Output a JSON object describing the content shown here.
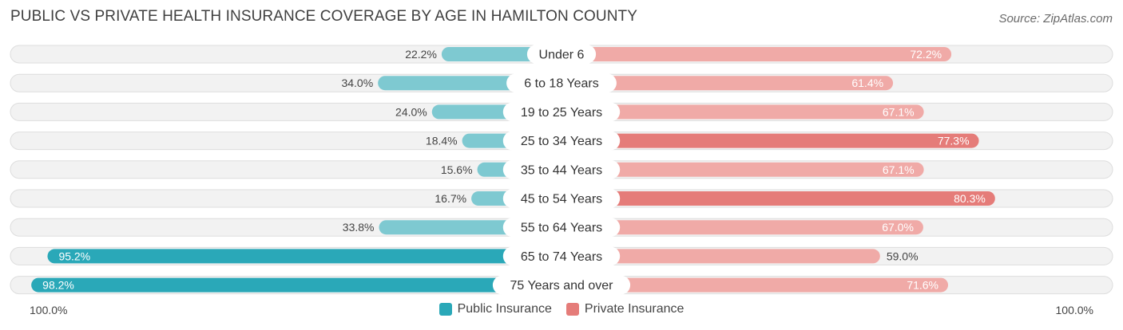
{
  "title": "PUBLIC VS PRIVATE HEALTH INSURANCE COVERAGE BY AGE IN HAMILTON COUNTY",
  "source": "Source: ZipAtlas.com",
  "axis": {
    "left_label": "100.0%",
    "right_label": "100.0%"
  },
  "legend": {
    "public_label": "Public Insurance",
    "private_label": "Private Insurance"
  },
  "colors": {
    "public_strong": "#2aa8b8",
    "public_light": "#7ec9d1",
    "private_strong": "#e57c79",
    "private_light": "#f0aaa7",
    "row_bg": "#f2f2f2",
    "row_border": "#dddddd"
  },
  "chart_data": {
    "type": "bar",
    "orientation": "diverging-horizontal",
    "title": "PUBLIC VS PRIVATE HEALTH INSURANCE COVERAGE BY AGE IN HAMILTON COUNTY",
    "xlim": [
      -100,
      100
    ],
    "categories": [
      "Under 6",
      "6 to 18 Years",
      "19 to 25 Years",
      "25 to 34 Years",
      "35 to 44 Years",
      "45 to 54 Years",
      "55 to 64 Years",
      "65 to 74 Years",
      "75 Years and over"
    ],
    "series": [
      {
        "name": "Public Insurance",
        "values": [
          22.2,
          34.0,
          24.0,
          18.4,
          15.6,
          16.7,
          33.8,
          95.2,
          98.2
        ],
        "labels": [
          "22.2%",
          "34.0%",
          "24.0%",
          "18.4%",
          "15.6%",
          "16.7%",
          "33.8%",
          "95.2%",
          "98.2%"
        ]
      },
      {
        "name": "Private Insurance",
        "values": [
          72.2,
          61.4,
          67.1,
          77.3,
          67.1,
          80.3,
          67.0,
          59.0,
          71.6
        ],
        "labels": [
          "72.2%",
          "61.4%",
          "67.1%",
          "77.3%",
          "67.1%",
          "80.3%",
          "67.0%",
          "59.0%",
          "71.6%"
        ]
      }
    ]
  }
}
